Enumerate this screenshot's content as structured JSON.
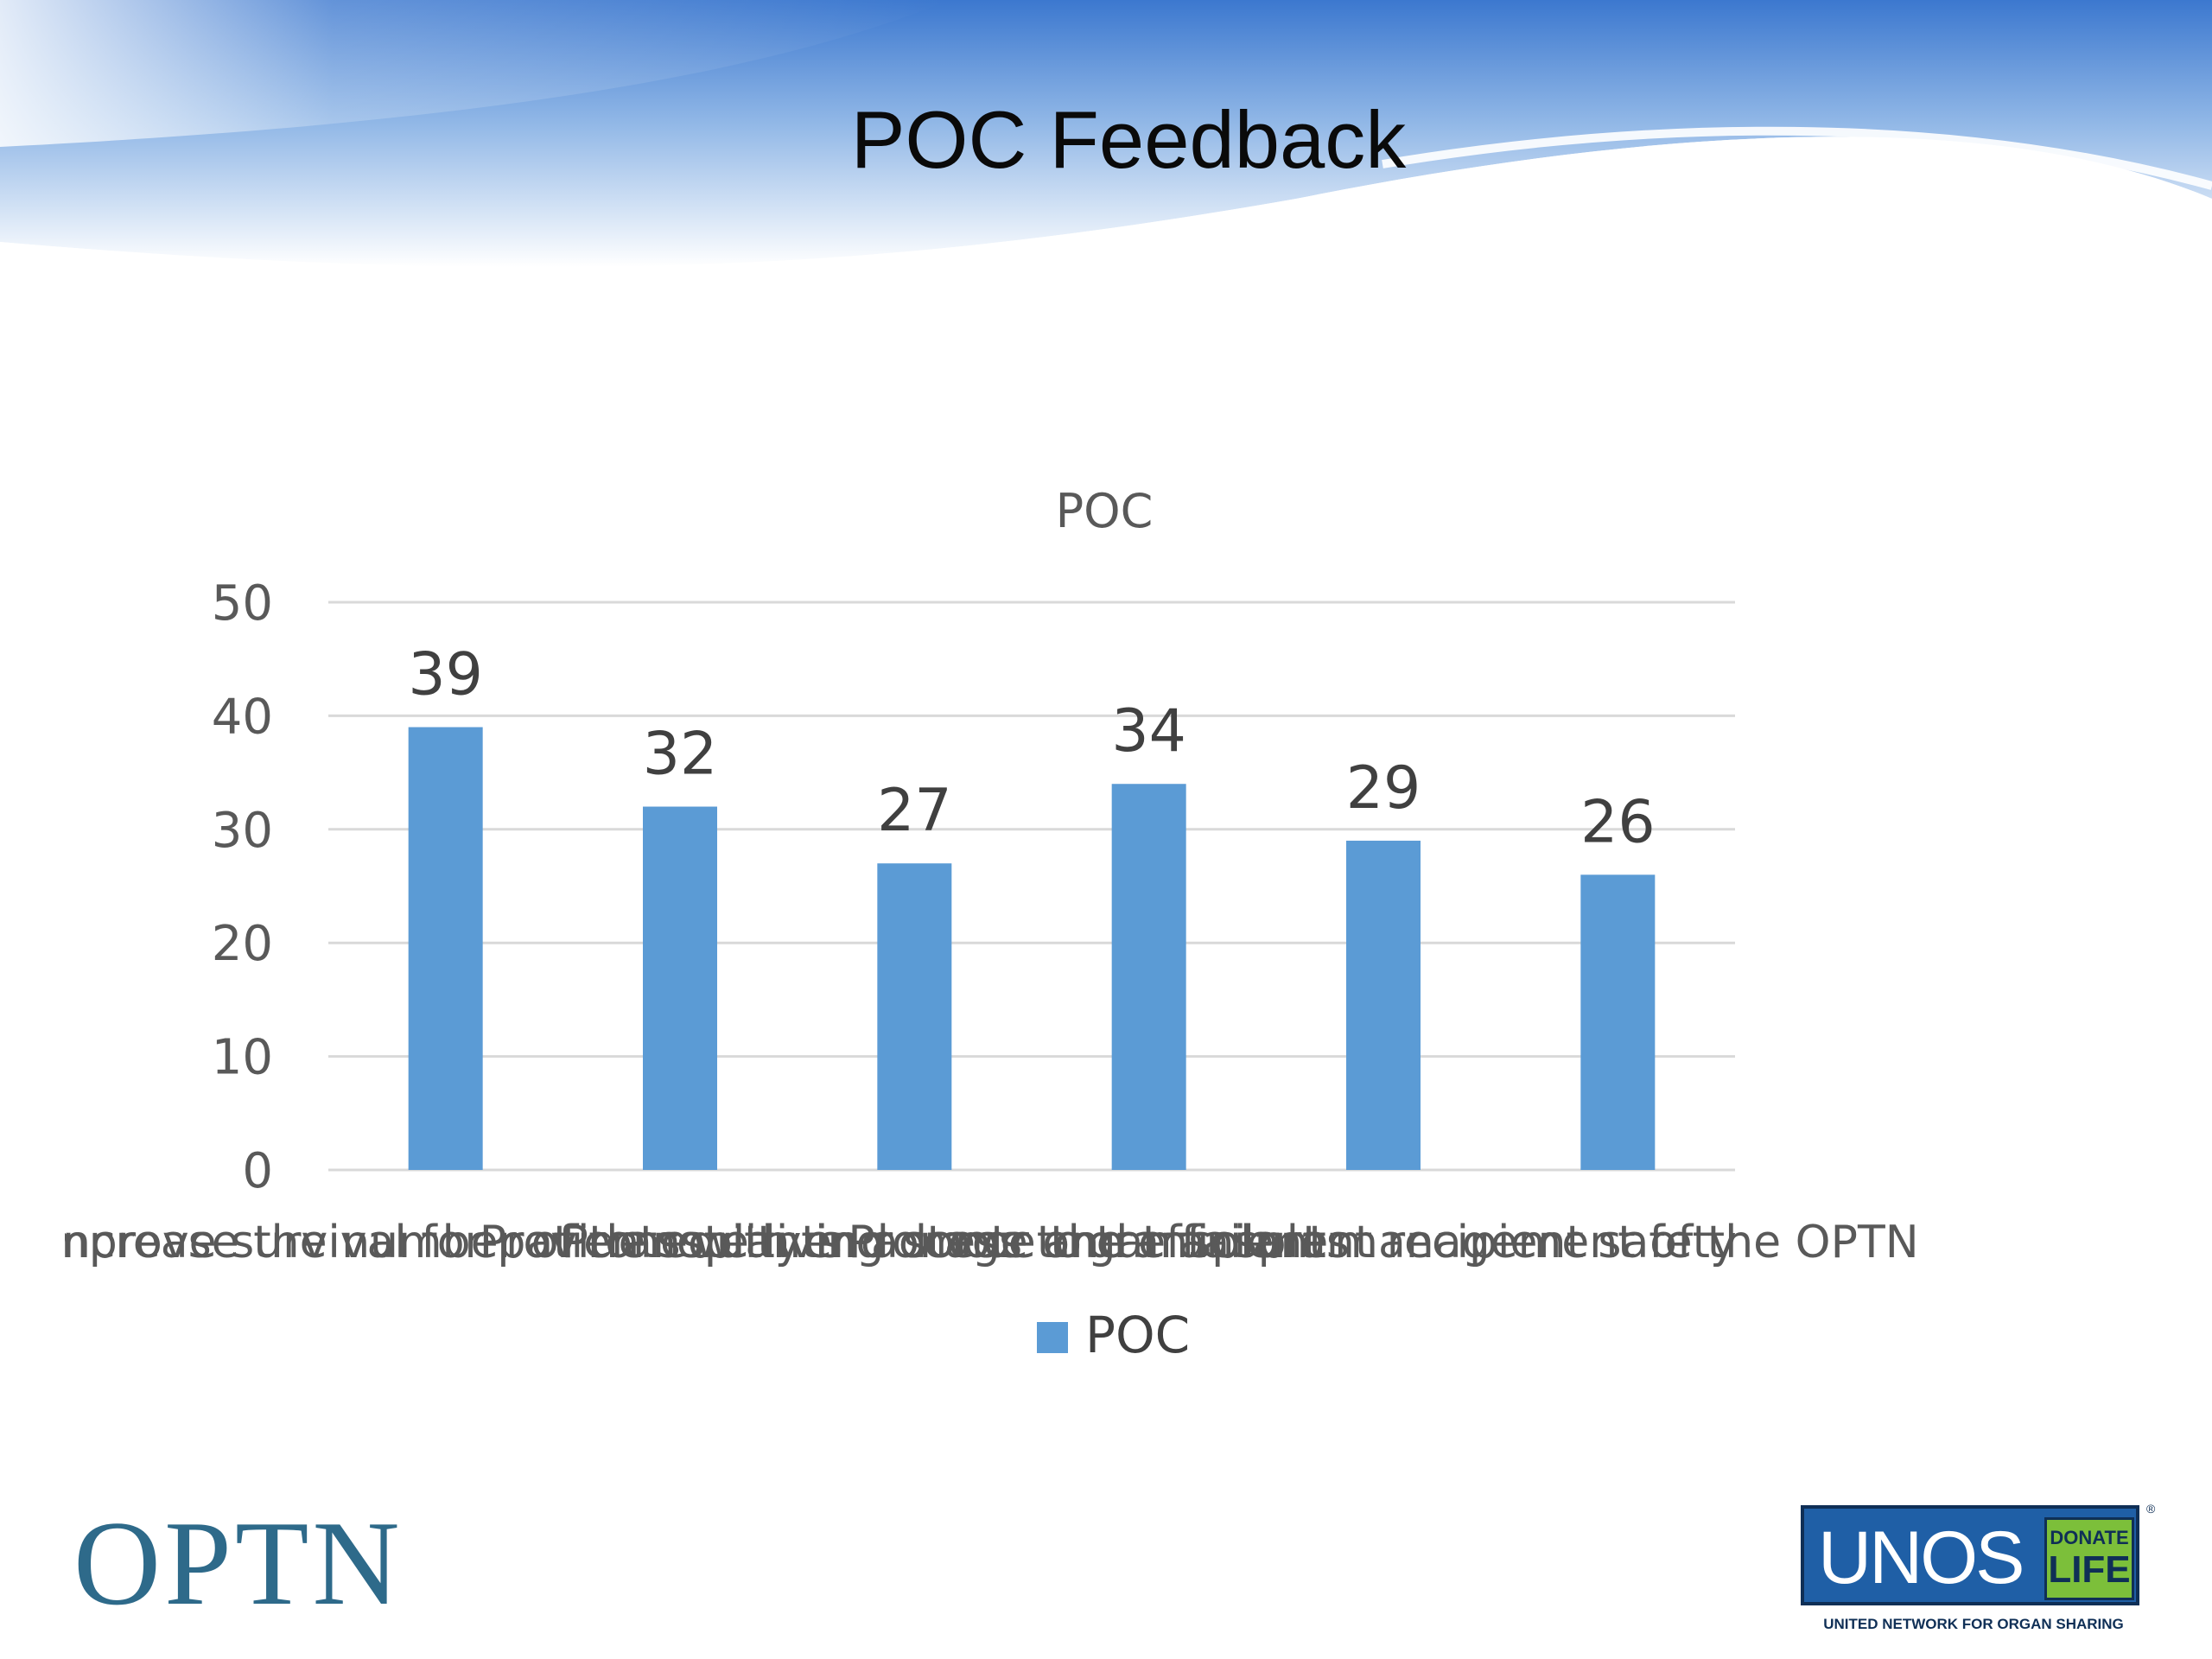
{
  "slide": {
    "title": "POC Feedback"
  },
  "chart_data": {
    "type": "bar",
    "title": "POC",
    "categories": [
      "Increase the number of transplants",
      "Improve survival for patients with end stage organ failure",
      "Provide equity in access to transplants",
      "Promote living donor and transplant recipient safety",
      "Promote the efficient management of the OPTN",
      ""
    ],
    "visible_category_text": "ncrease the number of transplants with end stage organ failure Improve survival for patients Promote living donor safety Provide equity Promote the efficient management of the OPTN",
    "series": [
      {
        "name": "POC",
        "values": [
          39,
          32,
          27,
          34,
          29,
          26
        ]
      }
    ],
    "ylim": [
      0,
      50
    ],
    "yticks": [
      0,
      10,
      20,
      30,
      40,
      50
    ],
    "xlabel": "",
    "ylabel": "",
    "grid": true,
    "legend": "bottom",
    "data_labels": true,
    "colors": {
      "bar": "#5b9bd5",
      "grid": "#d9d9d9",
      "text": "#595959",
      "label": "#404040"
    }
  },
  "logos": {
    "optn": "OPTN",
    "unos": "UNOS",
    "donate": "DONATE",
    "life": "LIFE",
    "tagline": "UNITED NETWORK FOR ORGAN SHARING",
    "registered": "®"
  }
}
